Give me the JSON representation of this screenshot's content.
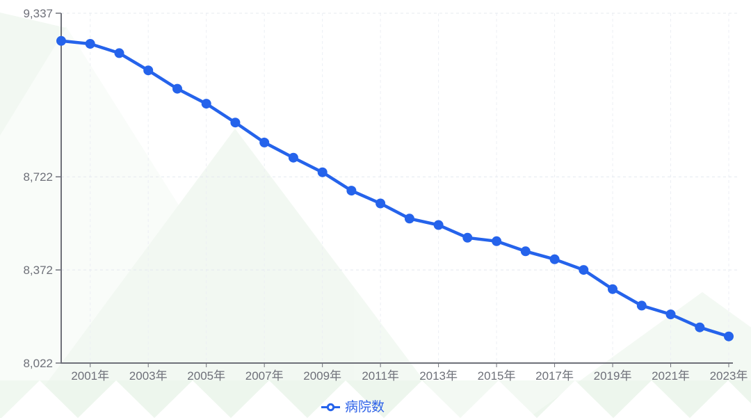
{
  "chart_data": {
    "type": "line",
    "title": "",
    "x": [
      2000,
      2001,
      2002,
      2003,
      2004,
      2005,
      2006,
      2007,
      2008,
      2009,
      2010,
      2011,
      2012,
      2013,
      2014,
      2015,
      2016,
      2017,
      2018,
      2019,
      2020,
      2021,
      2022,
      2023
    ],
    "x_tick_labels": [
      "2001年",
      "2003年",
      "2005年",
      "2007年",
      "2009年",
      "2011年",
      "2013年",
      "2015年",
      "2017年",
      "2019年",
      "2021年",
      "2023年"
    ],
    "series": [
      {
        "name": "病院数",
        "values": [
          9233,
          9222,
          9187,
          9122,
          9053,
          8997,
          8926,
          8851,
          8794,
          8739,
          8670,
          8622,
          8565,
          8541,
          8493,
          8480,
          8442,
          8412,
          8372,
          8300,
          8238,
          8205,
          8156,
          8122
        ]
      }
    ],
    "yaxis": {
      "min": 8022,
      "max": 9337,
      "tick_values": [
        8022,
        8372,
        8722,
        9337
      ],
      "tick_labels": [
        "8,022",
        "8,372",
        "8,722",
        "9,337"
      ]
    },
    "xlabel": "",
    "ylabel": "",
    "grid": {
      "horizontal_dashed": true,
      "vertical_dashed": true,
      "gridline_years": "odd years 2001-2023"
    },
    "legend": {
      "position": "bottom-center",
      "items": [
        {
          "label": "病院数",
          "icon": "line-with-hollow-circle"
        }
      ]
    }
  },
  "colors": {
    "series_blue": "#2563eb",
    "axis_gray": "#6e7079",
    "grid_y": "#e4e8ef",
    "grid_x": "#eceff4",
    "background": "#ffffff",
    "watermark_green": "#e7f3e7",
    "legend_text": "#2f63e8"
  }
}
